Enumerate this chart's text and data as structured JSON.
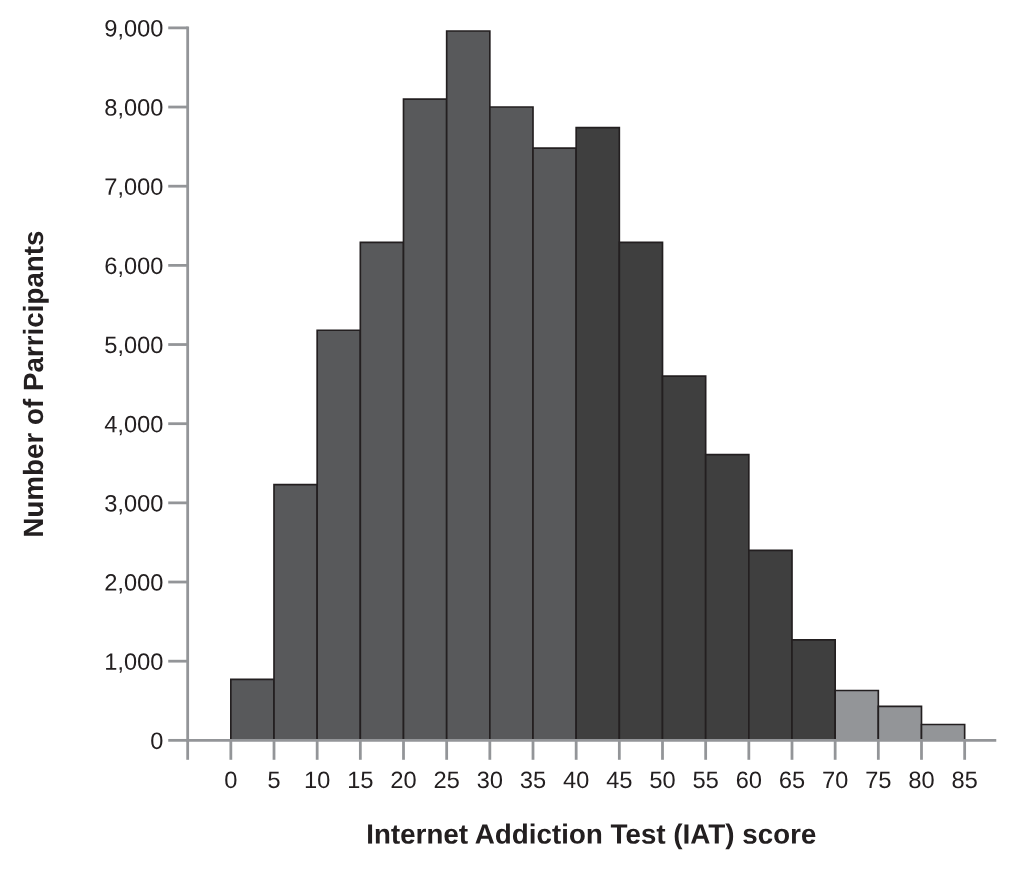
{
  "chart_data": {
    "type": "histogram",
    "xlabel": "Internet Addiction Test (IAT) score",
    "ylabel": "Number of Parricipants",
    "bins": [
      0,
      5,
      10,
      15,
      20,
      25,
      30,
      35,
      40,
      45,
      50,
      55,
      60,
      65,
      70,
      75,
      80,
      85
    ],
    "values": [
      770,
      3230,
      5180,
      6290,
      8100,
      8960,
      8000,
      7480,
      7740,
      6290,
      4600,
      3610,
      2400,
      1270,
      630,
      430,
      200
    ],
    "colors": [
      "#58595b",
      "#58595b",
      "#58595b",
      "#58595b",
      "#58595b",
      "#58595b",
      "#58595b",
      "#58595b",
      "#3f3f3f",
      "#3f3f3f",
      "#3f3f3f",
      "#3f3f3f",
      "#3f3f3f",
      "#3f3f3f",
      "#939598",
      "#939598",
      "#939598"
    ],
    "xlim": [
      -5,
      88.5
    ],
    "xticks": [
      {
        "value": -5,
        "label": null
      },
      0,
      5,
      10,
      15,
      20,
      25,
      30,
      35,
      40,
      45,
      50,
      55,
      60,
      65,
      70,
      75,
      80,
      85
    ],
    "ylim": [
      0,
      9000
    ],
    "yticks": [
      {
        "value": 0,
        "label": "0"
      },
      {
        "value": 1000,
        "label": "1,000"
      },
      {
        "value": 2000,
        "label": "2,000"
      },
      {
        "value": 3000,
        "label": "3,000"
      },
      {
        "value": 4000,
        "label": "4,000"
      },
      {
        "value": 5000,
        "label": "5,000"
      },
      {
        "value": 6000,
        "label": "6,000"
      },
      {
        "value": 7000,
        "label": "7,000"
      },
      {
        "value": 8000,
        "label": "8,000"
      },
      {
        "value": 9000,
        "label": "9,000"
      }
    ],
    "grid": false
  }
}
